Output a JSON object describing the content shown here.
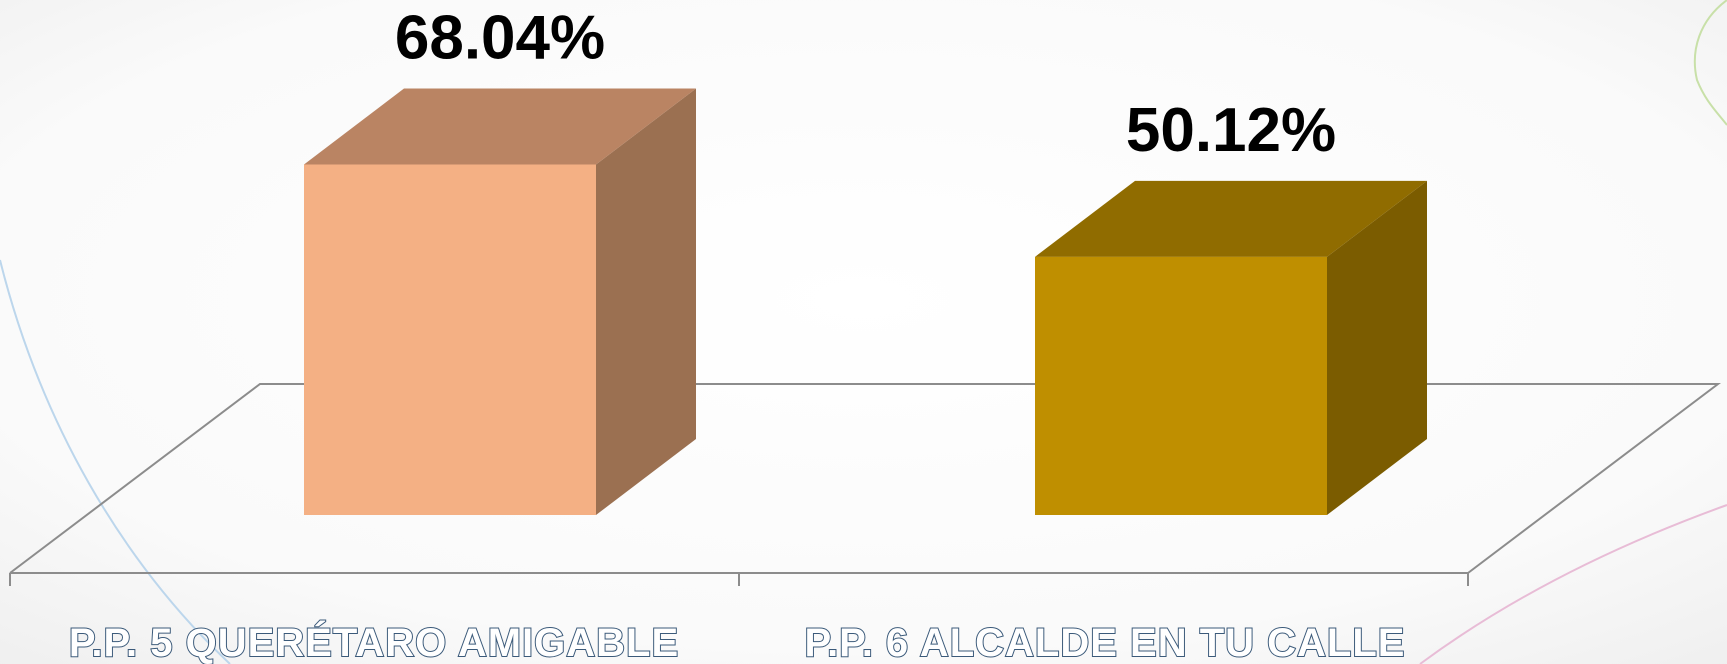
{
  "chart_data": {
    "type": "bar",
    "style": "3d-column",
    "categories": [
      "P.P. 5 QUERÉTARO AMIGABLE",
      "P.P. 6 ALCALDE EN TU CALLE"
    ],
    "values": [
      68.04,
      50.12
    ],
    "data_labels": [
      "68.04%",
      "50.12%"
    ],
    "title": "",
    "xlabel": "",
    "ylabel": "",
    "grid": false,
    "legend": "none",
    "colors": {
      "bars": [
        {
          "front": "#F4B084",
          "top": "#BA8463",
          "side": "#9B7051"
        },
        {
          "front": "#BF8F00",
          "top": "#906C00",
          "side": "#7B5C00"
        }
      ],
      "floor_line": "#8c8c8c",
      "label_outline": "#3b5a7a",
      "decor_blue": "#bcd6ec",
      "decor_pink": "#e8bcd6",
      "decor_green": "#c8e0a8"
    }
  }
}
